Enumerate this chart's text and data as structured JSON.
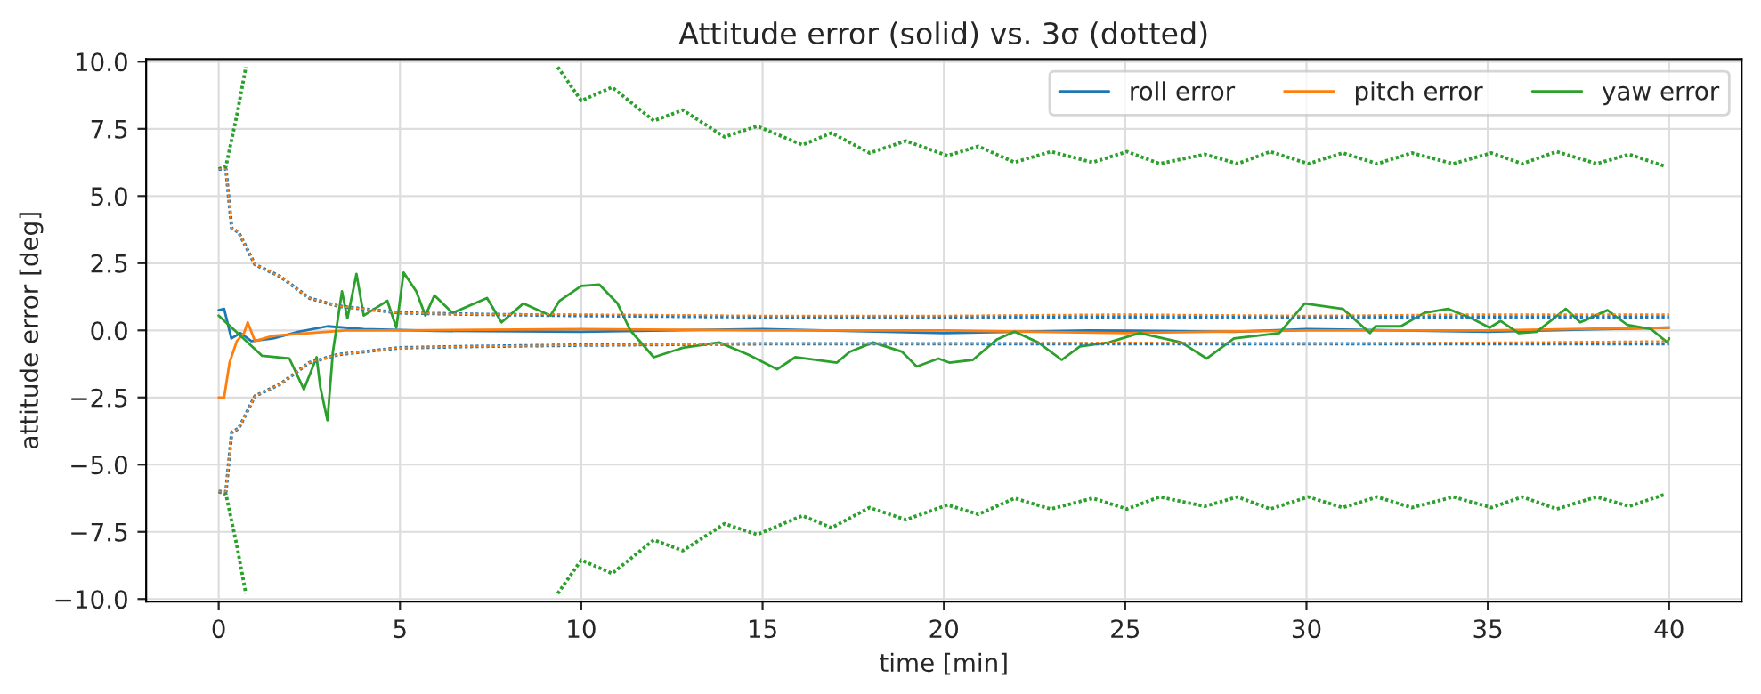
{
  "chart_data": {
    "type": "line",
    "title": "Attitude error (solid) vs. 3σ (dotted)",
    "xlabel": "time [min]",
    "ylabel": "attitude error [deg]",
    "xlim": [
      -2,
      42
    ],
    "xticks": [
      0,
      5,
      10,
      15,
      20,
      25,
      30,
      35,
      40
    ],
    "ylim": [
      -10.1,
      10.1
    ],
    "yticks": [
      {
        "value": -10,
        "label": "−10.0"
      },
      {
        "value": -7.5,
        "label": "−7.5"
      },
      {
        "value": -5,
        "label": "−5.0"
      },
      {
        "value": -2.5,
        "label": "−2.5"
      },
      {
        "value": 0,
        "label": "0.0"
      },
      {
        "value": 2.5,
        "label": "2.5"
      },
      {
        "value": 5,
        "label": "5.0"
      },
      {
        "value": 7.5,
        "label": "7.5"
      },
      {
        "value": 10,
        "label": "10.0"
      }
    ],
    "grid": true,
    "legend": "top right",
    "series": [
      {
        "name": "roll error",
        "color": "#1f77b4",
        "line_style": "solid",
        "x": [
          0,
          0.15,
          0.35,
          0.6,
          0.9,
          1.5,
          2.2,
          3.0,
          4,
          6,
          10,
          15,
          20,
          24,
          28,
          30,
          35,
          40
        ],
        "values": [
          0.75,
          0.8,
          -0.3,
          -0.1,
          -0.4,
          -0.3,
          -0.05,
          0.15,
          0.05,
          -0.02,
          -0.05,
          0.05,
          -0.1,
          0.0,
          -0.05,
          0.05,
          -0.05,
          0.1
        ]
      },
      {
        "name": "pitch error",
        "color": "#ff7f0e",
        "line_style": "solid",
        "x": [
          0,
          0.15,
          0.3,
          0.5,
          0.7,
          0.8,
          1.0,
          1.5,
          2.5,
          3.5,
          5,
          10,
          15,
          20,
          25,
          30,
          35,
          40
        ],
        "values": [
          -2.5,
          -2.5,
          -1.2,
          -0.4,
          -0.1,
          0.3,
          -0.4,
          -0.2,
          -0.1,
          0.0,
          0.0,
          0.05,
          0.0,
          0.0,
          -0.1,
          0.0,
          0.0,
          0.1
        ]
      },
      {
        "name": "yaw error",
        "color": "#2ca02c",
        "line_style": "solid",
        "x": [
          0,
          1.2,
          1.95,
          2.35,
          2.7,
          2.8,
          3.0,
          3.15,
          3.4,
          3.55,
          3.8,
          4.0,
          4.65,
          4.9,
          5.1,
          5.45,
          5.7,
          5.95,
          6.45,
          7.4,
          7.8,
          8.4,
          9.15,
          9.4,
          10.0,
          10.5,
          11.0,
          11.35,
          12.0,
          12.8,
          13.3,
          13.8,
          14.6,
          15.4,
          15.9,
          17.05,
          17.4,
          18.05,
          18.85,
          19.25,
          19.85,
          20.15,
          20.8,
          21.45,
          21.95,
          22.6,
          23.25,
          23.75,
          24.55,
          25.4,
          26.55,
          27.25,
          28.0,
          29.25,
          29.95,
          31.0,
          31.75,
          31.9,
          32.6,
          33.25,
          33.9,
          34.55,
          35.05,
          35.35,
          35.85,
          36.35,
          37.15,
          37.55,
          38.3,
          38.85,
          39.5,
          39.95,
          40
        ],
        "values": [
          0.55,
          -0.95,
          -1.05,
          -2.2,
          -1.0,
          -2.1,
          -3.35,
          -0.8,
          1.45,
          0.45,
          2.1,
          0.55,
          1.1,
          0.1,
          2.15,
          1.45,
          0.55,
          1.3,
          0.65,
          1.2,
          0.3,
          1.0,
          0.55,
          1.1,
          1.65,
          1.7,
          1.0,
          0.0,
          -1.0,
          -0.65,
          -0.55,
          -0.45,
          -0.9,
          -1.45,
          -1.0,
          -1.2,
          -0.8,
          -0.45,
          -0.8,
          -1.35,
          -1.05,
          -1.2,
          -1.1,
          -0.35,
          -0.05,
          -0.45,
          -1.1,
          -0.6,
          -0.45,
          -0.1,
          -0.45,
          -1.05,
          -0.3,
          -0.1,
          1.0,
          0.8,
          -0.1,
          0.15,
          0.15,
          0.65,
          0.8,
          0.45,
          0.1,
          0.35,
          -0.1,
          -0.05,
          0.8,
          0.3,
          0.75,
          0.2,
          0.05,
          -0.45,
          -0.3
        ]
      },
      {
        "color": "#1f77b4",
        "line_style": "dotted",
        "x": [
          0,
          0.2,
          0.36,
          0.55,
          1.0,
          1.7,
          2.5,
          3.3,
          5,
          7,
          10,
          15,
          20,
          25,
          30,
          35,
          40
        ],
        "values": [
          6.0,
          6.0,
          3.8,
          3.65,
          2.45,
          2.0,
          1.2,
          0.9,
          0.65,
          0.6,
          0.55,
          0.5,
          0.5,
          0.5,
          0.5,
          0.5,
          0.5
        ]
      },
      {
        "color": "#1f77b4",
        "line_style": "dotted",
        "x": [
          0,
          0.2,
          0.36,
          0.55,
          1.0,
          1.7,
          2.5,
          3.3,
          5,
          7,
          10,
          15,
          20,
          25,
          30,
          35,
          40
        ],
        "values": [
          -6.0,
          -6.0,
          -3.8,
          -3.65,
          -2.45,
          -2.0,
          -1.2,
          -0.9,
          -0.65,
          -0.6,
          -0.55,
          -0.5,
          -0.5,
          -0.5,
          -0.5,
          -0.5,
          -0.5
        ]
      },
      {
        "color": "#ff7f0e",
        "line_style": "dotted",
        "x": [
          0,
          0.2,
          0.36,
          0.55,
          1.0,
          1.7,
          2.5,
          3.3,
          5,
          7,
          10,
          15,
          20,
          25,
          30,
          35,
          40
        ],
        "values": [
          6.0,
          6.0,
          3.8,
          3.65,
          2.45,
          2.0,
          1.2,
          0.9,
          0.65,
          0.6,
          0.6,
          0.55,
          0.55,
          0.6,
          0.55,
          0.6,
          0.6
        ]
      },
      {
        "color": "#ff7f0e",
        "line_style": "dotted",
        "x": [
          0,
          0.2,
          0.36,
          0.55,
          1.0,
          1.7,
          2.5,
          3.3,
          5,
          7,
          10,
          15,
          20,
          25,
          30,
          35,
          40
        ],
        "values": [
          -6.0,
          -6.0,
          -3.8,
          -3.65,
          -2.45,
          -2.0,
          -1.2,
          -0.9,
          -0.65,
          -0.6,
          -0.55,
          -0.5,
          -0.5,
          -0.45,
          -0.5,
          -0.45,
          -0.4
        ]
      },
      {
        "color": "#2ca02c",
        "line_style": "dotted",
        "x": [
          0,
          0.2,
          0.5,
          0.75,
          5,
          9.35,
          10.0,
          10.85,
          12.0,
          12.8,
          13.95,
          14.85,
          16.1,
          16.9,
          17.95,
          18.95,
          20.1,
          20.95,
          21.95,
          22.95,
          24.1,
          25.05,
          25.95,
          27.2,
          28.1,
          29.0,
          30.05,
          31.0,
          31.95,
          32.9,
          34.05,
          35.1,
          35.95,
          36.9,
          38.0,
          38.9,
          39.9
        ],
        "values": [
          6.0,
          6.1,
          8.0,
          9.8,
          null,
          9.8,
          8.55,
          9.05,
          7.8,
          8.2,
          7.2,
          7.6,
          6.9,
          7.35,
          6.6,
          7.05,
          6.5,
          6.85,
          6.25,
          6.65,
          6.25,
          6.65,
          6.2,
          6.55,
          6.2,
          6.65,
          6.2,
          6.6,
          6.2,
          6.6,
          6.2,
          6.6,
          6.2,
          6.65,
          6.2,
          6.55,
          6.1
        ]
      },
      {
        "color": "#2ca02c",
        "line_style": "dotted",
        "x": [
          0,
          0.2,
          0.5,
          0.75,
          5,
          9.35,
          10.0,
          10.85,
          12.0,
          12.8,
          13.95,
          14.85,
          16.1,
          16.9,
          17.95,
          18.95,
          20.1,
          20.95,
          21.95,
          22.95,
          24.1,
          25.05,
          25.95,
          27.2,
          28.1,
          29.0,
          30.05,
          31.0,
          31.95,
          32.9,
          34.05,
          35.1,
          35.95,
          36.9,
          38.0,
          38.9,
          39.9
        ],
        "values": [
          -6.0,
          -6.1,
          -8.0,
          -9.8,
          null,
          -9.8,
          -8.55,
          -9.05,
          -7.8,
          -8.2,
          -7.2,
          -7.6,
          -6.9,
          -7.35,
          -6.6,
          -7.05,
          -6.5,
          -6.85,
          -6.25,
          -6.65,
          -6.25,
          -6.65,
          -6.2,
          -6.55,
          -6.2,
          -6.65,
          -6.2,
          -6.6,
          -6.2,
          -6.6,
          -6.2,
          -6.6,
          -6.2,
          -6.65,
          -6.2,
          -6.55,
          -6.1
        ]
      }
    ]
  }
}
